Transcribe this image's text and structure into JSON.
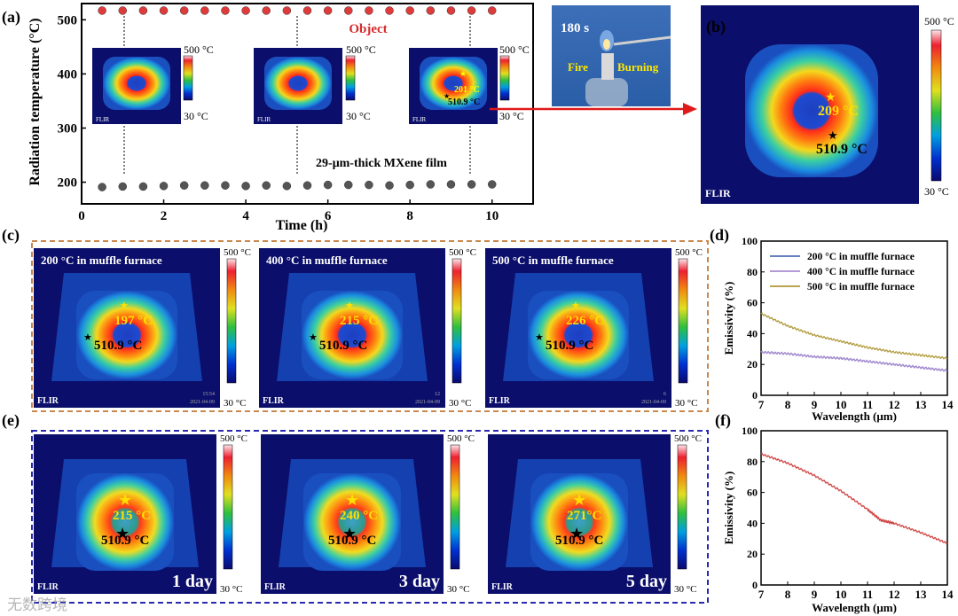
{
  "panel_labels": {
    "a": "(a)",
    "b": "(b)",
    "c": "(c)",
    "d": "(d)",
    "e": "(e)",
    "f": "(f)"
  },
  "colorbar": {
    "max": "500 °C",
    "min": "30 °C"
  },
  "flir": "FLIR",
  "panel_a": {
    "ylabel": "Radiation temperature (°C)",
    "xlabel": "Time (h)",
    "object_label": "Object",
    "film_label": "29-μm-thick MXene film",
    "inset_hot": "201 °C",
    "inset_cold": "510.9 °C",
    "photo_time": "180 s",
    "photo_fire": "Fire",
    "photo_burning": "Burning"
  },
  "panel_b": {
    "hot": "209 °C",
    "cold": "510.9 °C"
  },
  "panel_c": {
    "images": [
      {
        "title": "200 °C in muffle furnace",
        "hot": "197 °C",
        "cold": "510.9 °C",
        "stamp_time": "15:54",
        "stamp_date": "2021-04-09"
      },
      {
        "title": "400 °C in muffle furnace",
        "hot": "215 °C",
        "cold": "510.9 °C",
        "stamp_time": "12",
        "stamp_date": "2021-04-09"
      },
      {
        "title": "500 °C in muffle furnace",
        "hot": "226 °C",
        "cold": "510.9 °C",
        "stamp_time": "6",
        "stamp_date": "2021-04-09"
      }
    ]
  },
  "panel_e": {
    "images": [
      {
        "day": "1 day",
        "hot": "215 °C",
        "cold": "510.9 °C"
      },
      {
        "day": "3 day",
        "hot": "240 °C",
        "cold": "510.9 °C"
      },
      {
        "day": "5 day",
        "hot": "271°C",
        "cold": "510.9 °C"
      }
    ]
  },
  "watermark": "无数跨境",
  "chart_data": [
    {
      "type": "scatter",
      "title": "",
      "xlabel": "Time (h)",
      "ylabel": "Radiation temperature (°C)",
      "xlim": [
        0,
        11
      ],
      "ylim": [
        160,
        530
      ],
      "xticks": [
        0,
        2,
        4,
        6,
        8,
        10
      ],
      "yticks": [
        200,
        300,
        400,
        500
      ],
      "annotations": [
        "Object",
        "29-μm-thick MXene film"
      ],
      "series": [
        {
          "name": "Object",
          "color": "#e03b3b",
          "x": [
            0.5,
            1,
            1.5,
            2,
            2.5,
            3,
            3.5,
            4,
            4.5,
            5,
            5.5,
            6,
            6.5,
            7,
            7.5,
            8,
            8.5,
            9,
            9.5,
            10
          ],
          "y": [
            517,
            517,
            517,
            517,
            517,
            517,
            517,
            517,
            517,
            517,
            517,
            517,
            517,
            517,
            517,
            517,
            517,
            517,
            517,
            517
          ]
        },
        {
          "name": "29-μm-thick MXene film",
          "color": "#555555",
          "x": [
            0.5,
            1,
            1.5,
            2,
            2.5,
            3,
            3.5,
            4,
            4.5,
            5,
            5.5,
            6,
            6.5,
            7,
            7.5,
            8,
            8.5,
            9,
            9.5,
            10
          ],
          "y": [
            191,
            192,
            192,
            193,
            194,
            194,
            194,
            193,
            194,
            193,
            194,
            195,
            195,
            195,
            194,
            195,
            196,
            196,
            196,
            196
          ]
        }
      ]
    },
    {
      "type": "line",
      "title": "",
      "xlabel": "Wavelength (μm)",
      "ylabel": "Emissivity (%)",
      "xlim": [
        7,
        14
      ],
      "ylim": [
        0,
        100
      ],
      "xticks": [
        7,
        8,
        9,
        10,
        11,
        12,
        13,
        14
      ],
      "yticks": [
        0,
        20,
        40,
        60,
        80,
        100
      ],
      "legend": "top-right",
      "series": [
        {
          "name": "200 °C in muffle furnace",
          "color": "#4f6fb5",
          "x": [
            7,
            8,
            9,
            10,
            11,
            12,
            13,
            14
          ],
          "y": [
            28,
            27,
            25,
            24,
            22,
            20,
            18,
            16
          ]
        },
        {
          "name": "400 °C in muffle furnace",
          "color": "#a98bd1",
          "x": [
            7,
            8,
            9,
            10,
            11,
            12,
            13,
            14
          ],
          "y": [
            28,
            27,
            25,
            24,
            22,
            20,
            18,
            16
          ]
        },
        {
          "name": "500 °C in muffle furnace",
          "color": "#b09a3a",
          "x": [
            7,
            8,
            9,
            10,
            11,
            12,
            13,
            14
          ],
          "y": [
            53,
            45,
            39,
            35,
            31,
            28,
            26,
            24
          ]
        }
      ]
    },
    {
      "type": "line",
      "title": "",
      "xlabel": "Wavelength (μm)",
      "ylabel": "Emissivity (%)",
      "xlim": [
        7,
        14
      ],
      "ylim": [
        0,
        100
      ],
      "xticks": [
        7,
        8,
        9,
        10,
        11,
        12,
        13,
        14
      ],
      "yticks": [
        0,
        20,
        40,
        60,
        80,
        100
      ],
      "series": [
        {
          "name": "MXene film",
          "color": "#d04545",
          "x": [
            7,
            8,
            9,
            10,
            11,
            11.5,
            12,
            13,
            14
          ],
          "y": [
            85,
            79,
            71,
            61,
            49,
            42,
            40,
            34,
            27
          ]
        }
      ]
    }
  ]
}
